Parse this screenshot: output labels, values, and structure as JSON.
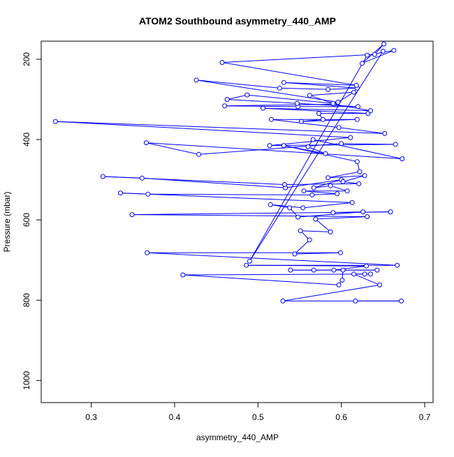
{
  "chart_data": {
    "type": "line",
    "title": "ATOM2 Southbound asymmetry_440_AMP",
    "xlabel": "asymmetry_440_AMP",
    "ylabel": "Pressure (mbar)",
    "xlim": [
      0.24,
      0.71
    ],
    "ylim": [
      1055,
      155
    ],
    "y_reversed": true,
    "grid": false,
    "legend": "none",
    "line_color": "#0000ff",
    "marker": "open-circle",
    "x_ticks": [
      {
        "value": 0.3,
        "label": "0.3"
      },
      {
        "value": 0.4,
        "label": "0.4"
      },
      {
        "value": 0.5,
        "label": "0.5"
      },
      {
        "value": 0.6,
        "label": "0.6"
      },
      {
        "value": 0.7,
        "label": "0.7"
      }
    ],
    "y_ticks": [
      {
        "value": 200,
        "label": "200"
      },
      {
        "value": 400,
        "label": "400"
      },
      {
        "value": 600,
        "label": "600"
      },
      {
        "value": 800,
        "label": "800"
      },
      {
        "value": 1000,
        "label": "1000"
      }
    ],
    "series": [
      {
        "points": [
          [
            0.617,
            802
          ],
          [
            0.672,
            802
          ],
          [
            0.53,
            802
          ],
          [
            0.646,
            762
          ],
          [
            0.615,
            735
          ],
          [
            0.628,
            735
          ],
          [
            0.635,
            735
          ],
          [
            0.41,
            737
          ],
          [
            0.597,
            762
          ],
          [
            0.601,
            750
          ],
          [
            0.602,
            725
          ],
          [
            0.643,
            725
          ],
          [
            0.567,
            725
          ],
          [
            0.539,
            725
          ],
          [
            0.591,
            725
          ],
          [
            0.63,
            715
          ],
          [
            0.486,
            713
          ],
          [
            0.667,
            713
          ],
          [
            0.367,
            682
          ],
          [
            0.599,
            682
          ],
          [
            0.544,
            685
          ],
          [
            0.562,
            650
          ],
          [
            0.551,
            627
          ],
          [
            0.587,
            630
          ],
          [
            0.569,
            598
          ],
          [
            0.631,
            592
          ],
          [
            0.349,
            587
          ],
          [
            0.659,
            580
          ],
          [
            0.59,
            582
          ],
          [
            0.626,
            580
          ],
          [
            0.548,
            593
          ],
          [
            0.538,
            570
          ],
          [
            0.515,
            562
          ],
          [
            0.554,
            570
          ],
          [
            0.613,
            557
          ],
          [
            0.335,
            533
          ],
          [
            0.368,
            536
          ],
          [
            0.565,
            538
          ],
          [
            0.595,
            535
          ],
          [
            0.555,
            528
          ],
          [
            0.607,
            528
          ],
          [
            0.587,
            515
          ],
          [
            0.567,
            520
          ],
          [
            0.6,
            500
          ],
          [
            0.533,
            520
          ],
          [
            0.361,
            496
          ],
          [
            0.314,
            492
          ],
          [
            0.532,
            512
          ],
          [
            0.621,
            510
          ],
          [
            0.602,
            505
          ],
          [
            0.628,
            490
          ],
          [
            0.584,
            495
          ],
          [
            0.622,
            480
          ],
          [
            0.619,
            455
          ],
          [
            0.531,
            415
          ],
          [
            0.581,
            435
          ],
          [
            0.56,
            418
          ],
          [
            0.566,
            400
          ],
          [
            0.673,
            448
          ],
          [
            0.366,
            408
          ],
          [
            0.429,
            437
          ],
          [
            0.6,
            410
          ],
          [
            0.665,
            412
          ],
          [
            0.514,
            415
          ],
          [
            0.611,
            395
          ],
          [
            0.257,
            355
          ],
          [
            0.652,
            385
          ],
          [
            0.597,
            370
          ],
          [
            0.516,
            350
          ],
          [
            0.619,
            350
          ],
          [
            0.552,
            355
          ],
          [
            0.578,
            350
          ],
          [
            0.573,
            335
          ],
          [
            0.632,
            335
          ],
          [
            0.506,
            322
          ],
          [
            0.635,
            328
          ],
          [
            0.591,
            312
          ],
          [
            0.46,
            316
          ],
          [
            0.548,
            318
          ],
          [
            0.62,
            318
          ],
          [
            0.547,
            310
          ],
          [
            0.463,
            300
          ],
          [
            0.487,
            289
          ],
          [
            0.59,
            310
          ],
          [
            0.562,
            290
          ],
          [
            0.615,
            282
          ],
          [
            0.596,
            307
          ],
          [
            0.426,
            252
          ],
          [
            0.526,
            272
          ],
          [
            0.584,
            275
          ],
          [
            0.619,
            272
          ],
          [
            0.531,
            258
          ],
          [
            0.618,
            265
          ],
          [
            0.457,
            208
          ],
          [
            0.64,
            188
          ],
          [
            0.651,
            162
          ],
          [
            0.625,
            210
          ],
          [
            0.663,
            178
          ],
          [
            0.631,
            190
          ],
          [
            0.49,
            703
          ],
          [
            0.65,
            180
          ]
        ]
      }
    ]
  }
}
